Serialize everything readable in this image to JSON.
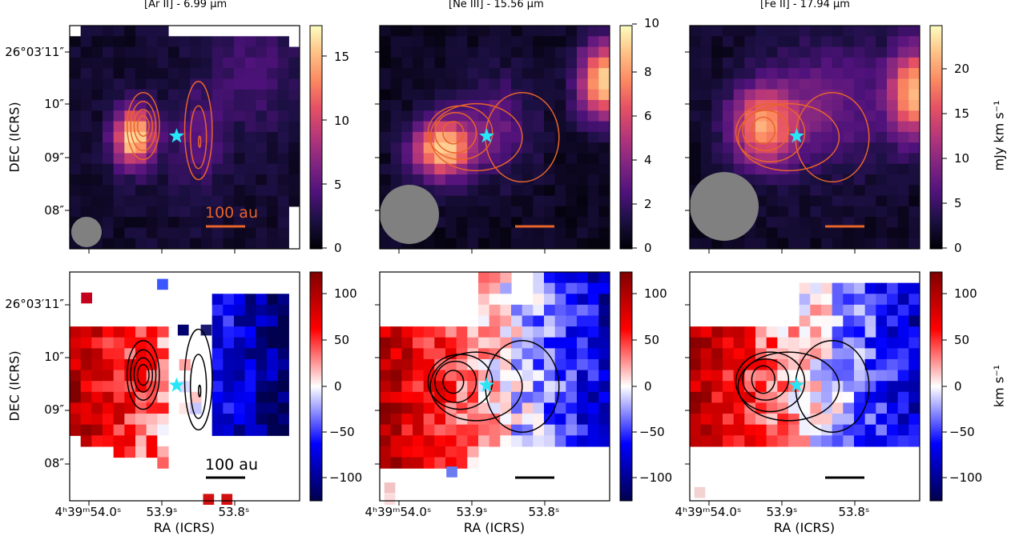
{
  "chart_data": {
    "type": "heatmap",
    "panels": [
      {
        "title": "[Ar II] - 6.99 μm",
        "colorbar_ticks": [
          "0",
          "5",
          "10",
          "15"
        ],
        "vmax": 17.5,
        "colormap": "magma",
        "scalebar_label": "100 au",
        "beam": "small"
      },
      {
        "title": "[Ne III] - 15.56 μm",
        "colorbar_ticks": [
          "0",
          "2",
          "4",
          "6",
          "8",
          "10"
        ],
        "vmax": 10.2,
        "colormap": "magma",
        "scalebar_label": "",
        "beam": "large"
      },
      {
        "title": "[Fe II] - 17.94 μm",
        "colorbar_ticks": [
          "0",
          "5",
          "10",
          "15",
          "20"
        ],
        "vmax": 24.5,
        "colormap": "magma",
        "scalebar_label": "",
        "beam": "large"
      },
      {
        "title": "",
        "colorbar_ticks": [
          "−100",
          "−50",
          "0",
          "50",
          "100"
        ],
        "vrange": [
          -125,
          125
        ],
        "colormap": "seismic",
        "scalebar_label": "100 au"
      },
      {
        "title": "",
        "colorbar_ticks": [
          "−100",
          "−50",
          "0",
          "50",
          "100"
        ],
        "vrange": [
          -125,
          125
        ],
        "colormap": "seismic",
        "scalebar_label": ""
      },
      {
        "title": "",
        "colorbar_ticks": [
          "−100",
          "−50",
          "0",
          "50",
          "100"
        ],
        "vrange": [
          -125,
          125
        ],
        "colormap": "seismic",
        "scalebar_label": ""
      }
    ],
    "top_colorbar_label": "mJy km s⁻¹",
    "bottom_colorbar_label": "km s⁻¹",
    "ylabel": "DEC (ICRS)",
    "xlabel": "RA (ICRS)",
    "ytick_labels": [
      "26°03′11″",
      "10″",
      "09″",
      "08″"
    ],
    "xtick_labels": {
      "first": "4ʰ39ᵐ54.0ˢ",
      "second": "53.9ˢ",
      "third": "53.8ˢ"
    }
  }
}
